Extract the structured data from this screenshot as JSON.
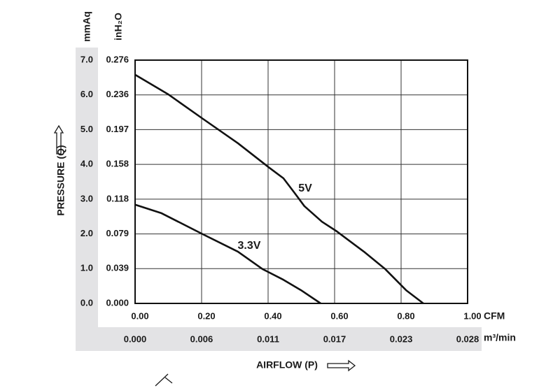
{
  "chart_data": {
    "type": "line",
    "x_label": "AIRFLOW (P)",
    "y_label": "PRESSURE (Q)",
    "y_unit": "mmAq",
    "y2_unit": "inH₂O",
    "x_unit": "CFM",
    "x2_unit": "m³/min",
    "xlim": [
      0,
      1
    ],
    "xticks": [
      {
        "value": 0,
        "label": "0.00"
      },
      {
        "value": 0.2,
        "label": "0.20"
      },
      {
        "value": 0.4,
        "label": "0.40"
      },
      {
        "value": 0.6,
        "label": "0.60"
      },
      {
        "value": 0.8,
        "label": "0.80"
      },
      {
        "value": 1,
        "label": "1.00"
      }
    ],
    "x2lim": [
      0,
      0.02832
    ],
    "x2ticks": [
      {
        "value": 0,
        "label": "0.000"
      },
      {
        "value": 0.00566,
        "label": "0.006"
      },
      {
        "value": 0.01133,
        "label": "0.011"
      },
      {
        "value": 0.01699,
        "label": "0.017"
      },
      {
        "value": 0.02266,
        "label": "0.023"
      },
      {
        "value": 0.02832,
        "label": "0.028"
      }
    ],
    "ylim": [
      0,
      7
    ],
    "yticks": [
      {
        "value": 0,
        "label": "0.0"
      },
      {
        "value": 1,
        "label": "1.0"
      },
      {
        "value": 2,
        "label": "2.0"
      },
      {
        "value": 3,
        "label": "3.0"
      },
      {
        "value": 4,
        "label": "4.0"
      },
      {
        "value": 5,
        "label": "5.0"
      },
      {
        "value": 6,
        "label": "6.0"
      },
      {
        "value": 7,
        "label": "7.0"
      }
    ],
    "y2lim": [
      0,
      0.2756
    ],
    "y2ticks": [
      {
        "value": 0,
        "label": "0.000"
      },
      {
        "value": 0.03937,
        "label": "0.039"
      },
      {
        "value": 0.07874,
        "label": "0.079"
      },
      {
        "value": 0.11811,
        "label": "0.118"
      },
      {
        "value": 0.15748,
        "label": "0.158"
      },
      {
        "value": 0.19685,
        "label": "0.197"
      },
      {
        "value": 0.23622,
        "label": "0.236"
      },
      {
        "value": 0.2756,
        "label": "0.276"
      }
    ],
    "grid": true,
    "series": [
      {
        "name": "5V",
        "color": "#111111",
        "x": [
          0,
          0.099,
          0.204,
          0.309,
          0.404,
          0.446,
          0.478,
          0.509,
          0.562,
          0.604,
          0.688,
          0.752,
          0.815,
          0.867
        ],
        "values": [
          6.58,
          6.02,
          5.31,
          4.61,
          3.9,
          3.6,
          3.2,
          2.8,
          2.35,
          2.09,
          1.49,
          0.99,
          0.38,
          0
        ]
      },
      {
        "name": "3.3V",
        "color": "#111111",
        "x": [
          0,
          0.078,
          0.204,
          0.309,
          0.383,
          0.446,
          0.499,
          0.558
        ],
        "values": [
          2.84,
          2.6,
          1.99,
          1.49,
          0.99,
          0.68,
          0.38,
          0
        ]
      }
    ]
  }
}
